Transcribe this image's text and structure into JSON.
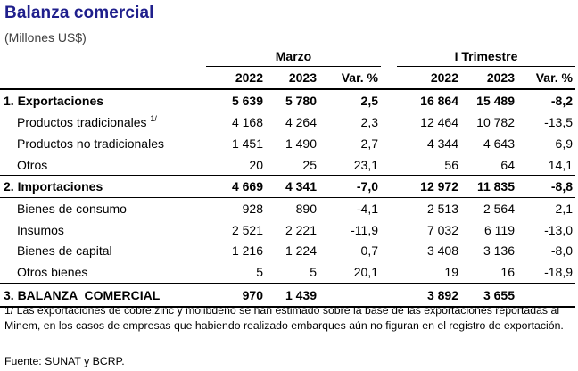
{
  "title": "Balanza comercial",
  "subtitle": "(Millones US$)",
  "groups": {
    "march": "Marzo",
    "quarter": "I Trimestre"
  },
  "columns": [
    "2022",
    "2023",
    "Var. %",
    "2022",
    "2023",
    "Var. %"
  ],
  "rows": [
    {
      "label": "1. Exportaciones",
      "values": [
        "5 639",
        "5 780",
        "2,5",
        "16 864",
        "15 489",
        "-8,2"
      ]
    },
    {
      "label": "Productos tradicionales",
      "footnote": "1/",
      "values": [
        "4 168",
        "4 264",
        "2,3",
        "12 464",
        "10 782",
        "-13,5"
      ]
    },
    {
      "label": "Productos no tradicionales",
      "values": [
        "1 451",
        "1 490",
        "2,7",
        "4 344",
        "4 643",
        "6,9"
      ]
    },
    {
      "label": "Otros",
      "values": [
        "20",
        "25",
        "23,1",
        "56",
        "64",
        "14,1"
      ]
    },
    {
      "label": "2. Importaciones",
      "values": [
        "4 669",
        "4 341",
        "-7,0",
        "12 972",
        "11 835",
        "-8,8"
      ]
    },
    {
      "label": "Bienes de consumo",
      "values": [
        "928",
        "890",
        "-4,1",
        "2 513",
        "2 564",
        "2,1"
      ]
    },
    {
      "label": "Insumos",
      "values": [
        "2 521",
        "2 221",
        "-11,9",
        "7 032",
        "6 119",
        "-13,0"
      ]
    },
    {
      "label": "Bienes de capital",
      "values": [
        "1 216",
        "1 224",
        "0,7",
        "3 408",
        "3 136",
        "-8,0"
      ]
    },
    {
      "label": "Otros bienes",
      "values": [
        "5",
        "5",
        "20,1",
        "19",
        "16",
        "-18,9"
      ]
    },
    {
      "label": "3. BALANZA  COMERCIAL",
      "values": [
        "970",
        "1 439",
        "",
        "3 892",
        "3 655",
        ""
      ]
    }
  ],
  "footnote": "1/ Las exportaciones de cobre,zinc y molibdeno se han estimado sobre la base de las exportaciones reportadas al Minem, en los casos de empresas que habiendo realizado embarques aún no figuran en el registro de exportación.",
  "source": "Fuente: SUNAT y BCRP."
}
